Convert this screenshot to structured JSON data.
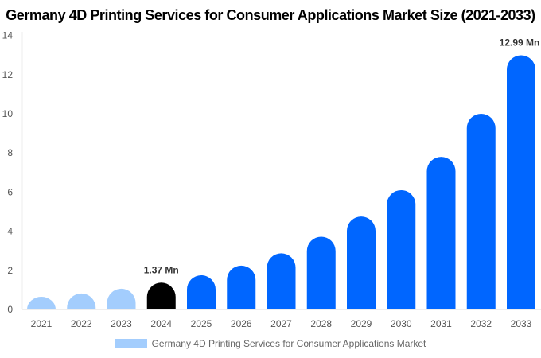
{
  "chart_data": {
    "type": "bar",
    "title": "Germany 4D Printing Services for Consumer Applications Market Size (2021-2033)",
    "categories": [
      "2021",
      "2022",
      "2023",
      "2024",
      "2025",
      "2026",
      "2027",
      "2028",
      "2029",
      "2030",
      "2031",
      "2032",
      "2033"
    ],
    "series": [
      {
        "name": "Germany 4D Printing Services for Consumer Applications Market",
        "values": [
          0.65,
          0.82,
          1.06,
          1.37,
          1.75,
          2.24,
          2.87,
          3.72,
          4.75,
          6.1,
          7.8,
          10.0,
          12.99
        ]
      }
    ],
    "data_labels": {
      "3": "1.37 Mn",
      "12": "12.99 Mn"
    },
    "ylim": [
      0,
      14
    ],
    "yticks": [
      0,
      2,
      4,
      6,
      8,
      10,
      12,
      14
    ],
    "grid": false,
    "legend_position": "bottom",
    "colors": {
      "historical": "#a3cdfd",
      "base_year": "#000000",
      "forecast": "#0066ff"
    }
  }
}
